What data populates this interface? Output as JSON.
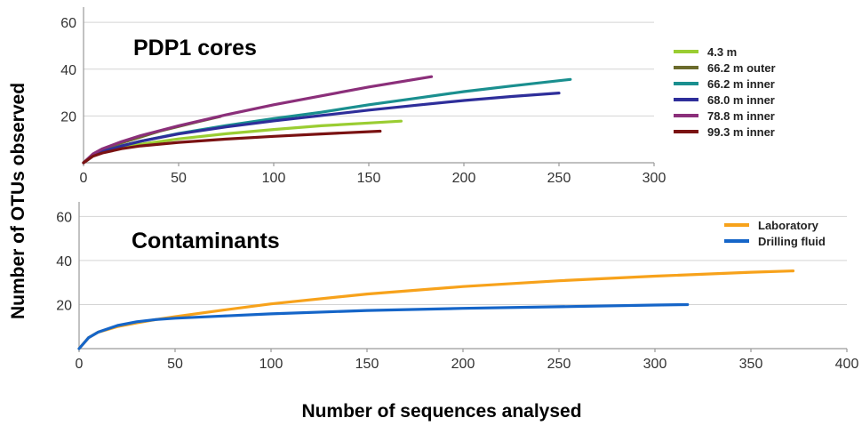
{
  "chart_data": [
    {
      "type": "line",
      "title": "PDP1 cores",
      "xlim": [
        0,
        300
      ],
      "ylim": [
        0,
        65
      ],
      "xticks": [
        0,
        50,
        100,
        150,
        200,
        250,
        300
      ],
      "yticks": [
        20,
        40,
        60
      ],
      "grid": "horizontal",
      "legend_position": "right",
      "series": [
        {
          "name": "4.3 m",
          "color": "#9acd32",
          "x": [
            0,
            5,
            10,
            20,
            30,
            50,
            75,
            100,
            125,
            150,
            167
          ],
          "y": [
            0,
            3,
            4.6,
            6.5,
            7.9,
            10.2,
            12.4,
            14.2,
            15.8,
            17,
            17.8
          ]
        },
        {
          "name": "66.2 m outer",
          "color": "#6b6b2c",
          "x": [
            0,
            5,
            10,
            20,
            30,
            40,
            50,
            60,
            72
          ],
          "y": [
            0,
            3.6,
            5.5,
            8.5,
            11,
            13.5,
            15.5,
            17.5,
            19.8
          ]
        },
        {
          "name": "66.2 m inner",
          "color": "#1a8f8f",
          "x": [
            0,
            5,
            10,
            20,
            30,
            50,
            75,
            100,
            125,
            150,
            175,
            200,
            225,
            256
          ],
          "y": [
            0,
            3,
            4.8,
            7.2,
            9.2,
            12.5,
            15.9,
            18.9,
            21.6,
            24.8,
            27.6,
            30.4,
            32.8,
            35.6
          ]
        },
        {
          "name": "68.0 m inner",
          "color": "#2e2e9a",
          "x": [
            0,
            5,
            10,
            20,
            30,
            50,
            75,
            100,
            125,
            150,
            175,
            200,
            225,
            250
          ],
          "y": [
            0,
            3,
            4.8,
            7.2,
            9.2,
            12.3,
            15.3,
            17.9,
            20.2,
            22.5,
            24.6,
            26.6,
            28.3,
            29.8
          ]
        },
        {
          "name": "78.8 m inner",
          "color": "#8b2f7a",
          "x": [
            0,
            5,
            10,
            20,
            30,
            50,
            75,
            100,
            125,
            150,
            183
          ],
          "y": [
            0,
            3.8,
            6,
            9,
            11.6,
            15.8,
            20.5,
            24.8,
            28.6,
            32.4,
            36.8
          ]
        },
        {
          "name": "99.3 m inner",
          "color": "#7a1212",
          "x": [
            0,
            5,
            10,
            20,
            30,
            50,
            75,
            100,
            125,
            156
          ],
          "y": [
            0,
            2.8,
            4.2,
            6,
            7.2,
            8.7,
            10.1,
            11.3,
            12.3,
            13.5
          ]
        }
      ]
    },
    {
      "type": "line",
      "title": "Contaminants",
      "xlim": [
        0,
        400
      ],
      "ylim": [
        0,
        65
      ],
      "xticks": [
        0,
        50,
        100,
        150,
        200,
        250,
        300,
        350,
        400
      ],
      "yticks": [
        20,
        40,
        60
      ],
      "grid": "horizontal",
      "legend_position": "top-right",
      "xlabel": "Number of sequences analysed",
      "ylabel": "Number of OTUs observed",
      "series": [
        {
          "name": "Laboratory",
          "color": "#f7a21b",
          "x": [
            0,
            5,
            10,
            20,
            30,
            40,
            50,
            75,
            100,
            150,
            200,
            250,
            300,
            350,
            372
          ],
          "y": [
            0,
            5,
            7.5,
            10,
            11.7,
            13.2,
            14.5,
            17.5,
            20.3,
            24.8,
            28.2,
            30.8,
            32.9,
            34.7,
            35.3
          ]
        },
        {
          "name": "Drilling fluid",
          "color": "#1565c8",
          "x": [
            0,
            5,
            10,
            20,
            30,
            40,
            50,
            75,
            100,
            150,
            200,
            250,
            300,
            317
          ],
          "y": [
            0,
            5,
            7.5,
            10.5,
            12.2,
            13.2,
            13.8,
            14.8,
            15.8,
            17.3,
            18.3,
            19,
            19.8,
            20
          ]
        }
      ]
    }
  ]
}
